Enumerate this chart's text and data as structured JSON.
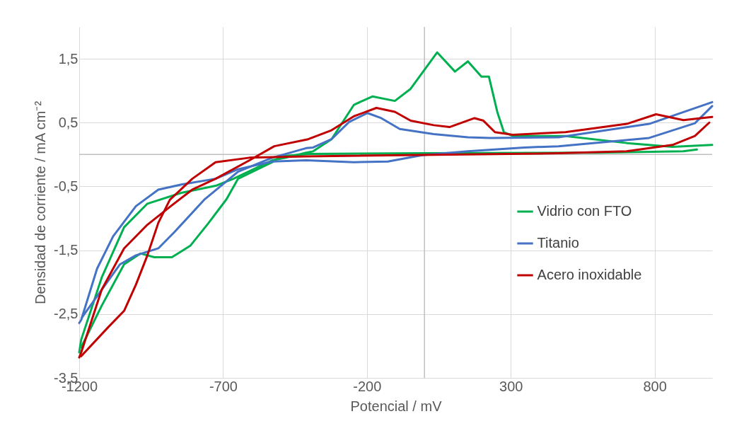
{
  "chart_data": {
    "type": "line",
    "xlabel": "Potencial / mV",
    "ylabel": "Densidad de corriente / mA cm⁻²",
    "xlim": [
      -1200,
      1000
    ],
    "xticks": [
      -1200,
      -700,
      -200,
      300,
      800
    ],
    "ylim": [
      -3.5,
      2
    ],
    "yticks": [
      {
        "value": 1.5,
        "label": "1,5"
      },
      {
        "value": 0.5,
        "label": "0,5"
      },
      {
        "value": -0.5,
        "label": "-0,5"
      },
      {
        "value": -1.5,
        "label": "-1,5"
      },
      {
        "value": -2.5,
        "label": "-2,5"
      },
      {
        "value": -3.5,
        "label": "-3,5"
      }
    ],
    "grid": true,
    "legend": "right",
    "line_style": "solid",
    "marker": "none",
    "series": [
      {
        "name": "Vidrio con FTO",
        "color": "#00b050",
        "x": [
          -1200,
          -1193,
          -1122,
          -1044,
          -963,
          -845,
          -726,
          -664,
          -529,
          -482,
          -411,
          -387,
          -323,
          -245,
          -181,
          -103,
          -48,
          44,
          106,
          151,
          198,
          224,
          253,
          276,
          307,
          490,
          703,
          862,
          1000
        ],
        "values": [
          -3.1,
          -2.9,
          -1.93,
          -1.14,
          -0.77,
          -0.6,
          -0.49,
          -0.38,
          -0.09,
          -0.05,
          0.03,
          0.05,
          0.24,
          0.78,
          0.91,
          0.84,
          1.03,
          1.6,
          1.3,
          1.46,
          1.22,
          1.22,
          0.67,
          0.35,
          0.29,
          0.29,
          0.18,
          0.12,
          0.15
        ]
      },
      {
        "color": "#00b050",
        "x": [
          -1193,
          -1122,
          -1044,
          -987,
          -939,
          -878,
          -814,
          -750,
          -688,
          -648,
          -529,
          -500,
          -400,
          0,
          600,
          900,
          947
        ],
        "values": [
          -3.02,
          -2.37,
          -1.72,
          -1.55,
          -1.61,
          -1.61,
          -1.43,
          -1.07,
          -0.7,
          -0.38,
          -0.12,
          -0.03,
          0.01,
          0.02,
          0.03,
          0.05,
          0.08
        ]
      },
      {
        "name": "Titanio",
        "color": "#4472c4",
        "x": [
          -1200,
          -1193,
          -1138,
          -1082,
          -1003,
          -925,
          -845,
          -726,
          -648,
          -529,
          -411,
          -245,
          -127,
          -8,
          151,
          347,
          466,
          781,
          940,
          1000
        ],
        "values": [
          -2.64,
          -2.59,
          -1.79,
          -1.28,
          -0.81,
          -0.55,
          -0.47,
          -0.38,
          -0.23,
          -0.11,
          -0.09,
          -0.12,
          -0.11,
          -0.01,
          0.05,
          0.11,
          0.13,
          0.26,
          0.49,
          0.76
        ]
      },
      {
        "color": "#4472c4",
        "x": [
          -1190,
          -1122,
          -1058,
          -1003,
          -925,
          -868,
          -766,
          -648,
          -529,
          -411,
          -387,
          -323,
          -262,
          -198,
          -150,
          -86,
          32,
          151,
          229,
          466,
          781,
          1000
        ],
        "values": [
          -2.55,
          -2.12,
          -1.72,
          -1.58,
          -1.47,
          -1.21,
          -0.71,
          -0.27,
          -0.05,
          0.1,
          0.11,
          0.24,
          0.51,
          0.65,
          0.57,
          0.4,
          0.32,
          0.27,
          0.26,
          0.27,
          0.48,
          0.82
        ]
      },
      {
        "name": "Acero inoxidable",
        "color": "#c00000",
        "x": [
          -1200,
          -1193,
          -1122,
          -1044,
          -963,
          -885,
          -807,
          -726,
          -608,
          -522,
          -404,
          -323,
          -245,
          -167,
          -103,
          -48,
          32,
          87,
          174,
          205,
          245,
          307,
          490,
          703,
          805,
          900,
          1000
        ],
        "values": [
          -3.18,
          -3.1,
          -2.12,
          -1.47,
          -1.1,
          -0.82,
          -0.55,
          -0.38,
          -0.09,
          0.13,
          0.24,
          0.38,
          0.6,
          0.73,
          0.67,
          0.53,
          0.46,
          0.43,
          0.57,
          0.53,
          0.35,
          0.31,
          0.35,
          0.48,
          0.63,
          0.54,
          0.59
        ]
      },
      {
        "color": "#c00000",
        "x": [
          -1193,
          -1098,
          -1044,
          -1003,
          -963,
          -925,
          -885,
          -807,
          -726,
          -608,
          -411,
          466,
          703,
          862,
          940,
          990
        ],
        "values": [
          -3.16,
          -2.7,
          -2.45,
          -2.04,
          -1.58,
          -1.07,
          -0.71,
          -0.38,
          -0.12,
          -0.05,
          -0.03,
          0.02,
          0.05,
          0.15,
          0.29,
          0.5
        ]
      }
    ]
  }
}
